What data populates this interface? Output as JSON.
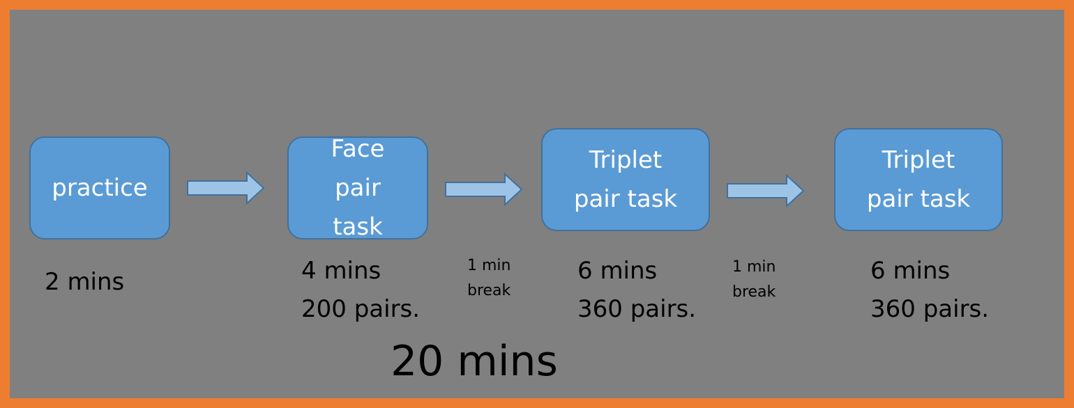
{
  "colors": {
    "border": "#ed7d31",
    "background": "#808080",
    "box_fill": "#5b9bd5",
    "box_stroke": "#41719c",
    "arrow_fill": "#9dc3e6"
  },
  "steps": [
    {
      "lines": [
        "practice"
      ]
    },
    {
      "lines": [
        "Face",
        "pair",
        "task"
      ]
    },
    {
      "lines": [
        "Triplet",
        "pair task"
      ]
    },
    {
      "lines": [
        "Triplet",
        "pair task"
      ]
    }
  ],
  "durations": [
    {
      "lines": [
        "2 mins"
      ]
    },
    {
      "lines": [
        "4 mins",
        "200 pairs."
      ]
    },
    {
      "lines": [
        "6 mins",
        "360 pairs."
      ]
    },
    {
      "lines": [
        "6 mins",
        "360 pairs."
      ]
    }
  ],
  "breaks": [
    {
      "lines": [
        "1 min",
        "break"
      ]
    },
    {
      "lines": [
        "1 min",
        "break"
      ]
    }
  ],
  "total": "20 mins",
  "arrow_icon": "right-arrow-icon"
}
